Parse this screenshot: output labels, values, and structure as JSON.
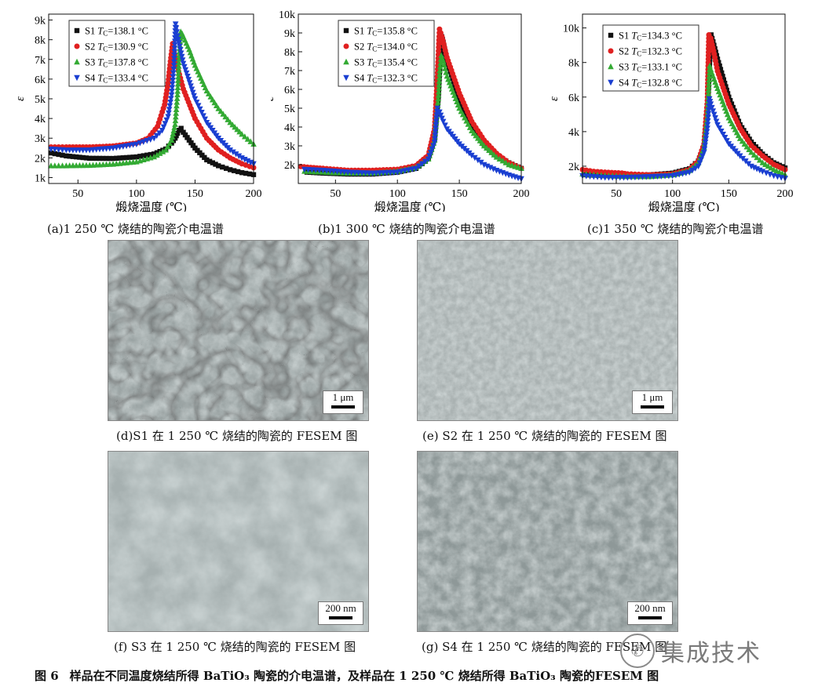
{
  "panels": [
    {
      "caption": "(a)1 250 ℃ 烧结的陶瓷介电温谱",
      "xlabel": "煅烧温度 (℃)",
      "ylabel": "ε",
      "legend": [
        {
          "name": "S1",
          "tc": "138.1 °C"
        },
        {
          "name": "S2",
          "tc": "130.9 °C"
        },
        {
          "name": "S3",
          "tc": "137.8 °C"
        },
        {
          "name": "S4",
          "tc": "133.4 °C"
        }
      ]
    },
    {
      "caption": "(b)1 300 ℃ 烧结的陶瓷介电温谱",
      "xlabel": "煅烧温度 (℃)",
      "ylabel": "ε",
      "legend": [
        {
          "name": "S1",
          "tc": "135.8 °C"
        },
        {
          "name": "S2",
          "tc": "134.0 °C"
        },
        {
          "name": "S3",
          "tc": "135.4 °C"
        },
        {
          "name": "S4",
          "tc": "132.3 °C"
        }
      ]
    },
    {
      "caption": "(c)1 350 ℃ 烧结的陶瓷介电温谱",
      "xlabel": "煅烧温度 (℃)",
      "ylabel": "ε",
      "legend": [
        {
          "name": "S1",
          "tc": "134.3 °C"
        },
        {
          "name": "S2",
          "tc": "132.3 °C"
        },
        {
          "name": "S3",
          "tc": "133.1 °C"
        },
        {
          "name": "S4",
          "tc": "132.8 °C"
        }
      ]
    }
  ],
  "chart_data": [
    {
      "type": "scatter",
      "xlabel": "煅烧温度 (℃)",
      "ylabel": "ε",
      "xlim": [
        25,
        200
      ],
      "ylim": [
        700,
        9300
      ],
      "xticks": [
        50,
        100,
        150,
        200
      ],
      "yticks": [
        1000,
        2000,
        3000,
        4000,
        5000,
        6000,
        7000,
        8000,
        9000
      ],
      "yticklabels": [
        "1k",
        "2k",
        "3k",
        "4k",
        "5k",
        "6k",
        "7k",
        "8k",
        "9k"
      ],
      "legend_position": "top-left",
      "series": [
        {
          "name": "S1",
          "color": "#111111",
          "marker": "square",
          "x": [
            27,
            40,
            60,
            80,
            100,
            115,
            125,
            130,
            133,
            135,
            136.5,
            138.1,
            140,
            150,
            160,
            170,
            180,
            190,
            200
          ],
          "y": [
            2250,
            2100,
            1980,
            1970,
            2050,
            2200,
            2450,
            2750,
            3000,
            3250,
            3400,
            3500,
            3300,
            2500,
            1900,
            1600,
            1400,
            1250,
            1150
          ]
        },
        {
          "name": "S2",
          "color": "#e02020",
          "marker": "circle",
          "x": [
            27,
            40,
            60,
            80,
            100,
            110,
            118,
            124,
            127,
            129,
            130.9,
            132,
            135,
            140,
            150,
            160,
            170,
            180,
            190,
            200
          ],
          "y": [
            2550,
            2550,
            2550,
            2600,
            2750,
            3000,
            3600,
            4700,
            5800,
            6900,
            7800,
            7400,
            6600,
            5500,
            4000,
            3000,
            2400,
            2000,
            1700,
            1500
          ]
        },
        {
          "name": "S3",
          "color": "#33aa33",
          "marker": "triangle-up",
          "x": [
            27,
            40,
            60,
            80,
            100,
            115,
            125,
            130,
            133,
            135,
            136.5,
            137.8,
            139,
            145,
            150,
            160,
            170,
            180,
            190,
            200
          ],
          "y": [
            1600,
            1600,
            1620,
            1680,
            1800,
            2050,
            2400,
            2900,
            3700,
            5200,
            7200,
            8400,
            8300,
            7500,
            6700,
            5400,
            4500,
            3800,
            3200,
            2700
          ]
        },
        {
          "name": "S4",
          "color": "#1a3fd1",
          "marker": "triangle-down",
          "x": [
            27,
            40,
            60,
            80,
            100,
            115,
            122,
            127,
            130,
            132,
            133.4,
            135,
            140,
            150,
            160,
            170,
            180,
            190,
            200
          ],
          "y": [
            2450,
            2400,
            2400,
            2500,
            2700,
            3000,
            3400,
            4100,
            5200,
            6700,
            8800,
            8200,
            6800,
            5000,
            3800,
            3000,
            2400,
            2000,
            1700
          ]
        }
      ]
    },
    {
      "type": "scatter",
      "xlabel": "煅烧温度 (℃)",
      "ylabel": "ε",
      "xlim": [
        20,
        200
      ],
      "ylim": [
        1000,
        10000
      ],
      "xticks": [
        50,
        100,
        150,
        200
      ],
      "yticks": [
        2000,
        3000,
        4000,
        5000,
        6000,
        7000,
        8000,
        9000,
        10000
      ],
      "yticklabels": [
        "2k",
        "3k",
        "4k",
        "5k",
        "6k",
        "7k",
        "8k",
        "9k",
        "10k"
      ],
      "legend_position": "top-left",
      "series": [
        {
          "name": "S1",
          "color": "#111111",
          "marker": "square",
          "x": [
            27,
            40,
            60,
            80,
            100,
            115,
            125,
            130,
            133,
            134.5,
            135.8,
            137,
            140,
            150,
            160,
            170,
            180,
            190,
            200
          ],
          "y": [
            1600,
            1550,
            1500,
            1500,
            1600,
            1800,
            2300,
            3300,
            5500,
            7500,
            8800,
            8500,
            7500,
            5500,
            4000,
            3100,
            2500,
            2100,
            1800
          ]
        },
        {
          "name": "S2",
          "color": "#e02020",
          "marker": "circle",
          "x": [
            22,
            30,
            40,
            60,
            80,
            100,
            115,
            125,
            130,
            132,
            134.0,
            136,
            140,
            150,
            160,
            170,
            180,
            190,
            200
          ],
          "y": [
            1900,
            1850,
            1800,
            1700,
            1700,
            1750,
            1950,
            2500,
            3900,
            6300,
            9200,
            8800,
            7700,
            5800,
            4300,
            3300,
            2600,
            2100,
            1800
          ]
        },
        {
          "name": "S3",
          "color": "#33aa33",
          "marker": "triangle-up",
          "x": [
            25,
            40,
            60,
            80,
            100,
            115,
            125,
            130,
            133,
            134.2,
            135.4,
            137,
            140,
            150,
            160,
            170,
            180,
            190,
            200
          ],
          "y": [
            1650,
            1600,
            1550,
            1550,
            1650,
            1850,
            2300,
            3300,
            5500,
            7000,
            7800,
            7500,
            6700,
            5000,
            3800,
            3000,
            2400,
            2000,
            1800
          ]
        },
        {
          "name": "S4",
          "color": "#1a3fd1",
          "marker": "triangle-down",
          "x": [
            25,
            40,
            60,
            80,
            100,
            115,
            125,
            130,
            131.3,
            132.3,
            134,
            137,
            140,
            150,
            160,
            170,
            180,
            190,
            200
          ],
          "y": [
            1750,
            1700,
            1600,
            1550,
            1600,
            1800,
            2300,
            3200,
            4300,
            5000,
            4800,
            4300,
            3900,
            3100,
            2500,
            2000,
            1700,
            1450,
            1250
          ]
        }
      ]
    },
    {
      "type": "scatter",
      "xlabel": "煅烧温度 (℃)",
      "ylabel": "ε",
      "xlim": [
        20,
        200
      ],
      "ylim": [
        1000,
        10800
      ],
      "xticks": [
        50,
        100,
        150,
        200
      ],
      "yticks": [
        2000,
        4000,
        6000,
        8000,
        10000
      ],
      "yticklabels": [
        "2k",
        "4k",
        "6k",
        "8k",
        "10k"
      ],
      "legend_position": "top-left",
      "series": [
        {
          "name": "S1",
          "color": "#111111",
          "marker": "square",
          "x": [
            22,
            40,
            60,
            80,
            100,
            115,
            123,
            128,
            131,
            133,
            134.3,
            136,
            140,
            150,
            160,
            170,
            180,
            190,
            200
          ],
          "y": [
            1500,
            1450,
            1450,
            1500,
            1600,
            1850,
            2300,
            3200,
            5000,
            8000,
            9600,
            9200,
            8200,
            6000,
            4400,
            3400,
            2700,
            2200,
            1900
          ]
        },
        {
          "name": "S2",
          "color": "#e02020",
          "marker": "circle",
          "x": [
            20,
            30,
            40,
            55,
            60,
            80,
            100,
            115,
            123,
            128,
            131,
            132.3,
            134,
            137,
            140,
            150,
            160,
            170,
            180,
            190,
            200
          ],
          "y": [
            1800,
            1700,
            1650,
            1600,
            1550,
            1500,
            1550,
            1800,
            2300,
            3300,
            5800,
            9600,
            9400,
            8500,
            7500,
            5600,
            4200,
            3200,
            2600,
            2100,
            1800
          ]
        },
        {
          "name": "S3",
          "color": "#33aa33",
          "marker": "triangle-up",
          "x": [
            20,
            40,
            60,
            80,
            100,
            115,
            123,
            128,
            131,
            133.1,
            135,
            140,
            150,
            160,
            170,
            180,
            190,
            200
          ],
          "y": [
            1550,
            1450,
            1400,
            1400,
            1500,
            1750,
            2200,
            3100,
            5000,
            7800,
            7400,
            6500,
            4800,
            3600,
            2800,
            2200,
            1800,
            1500
          ]
        },
        {
          "name": "S4",
          "color": "#1a3fd1",
          "marker": "triangle-down",
          "x": [
            20,
            40,
            60,
            80,
            100,
            115,
            123,
            128,
            131,
            132.8,
            134,
            137,
            140,
            150,
            160,
            170,
            180,
            190,
            200
          ],
          "y": [
            1450,
            1350,
            1350,
            1400,
            1450,
            1650,
            2000,
            2800,
            4200,
            5900,
            5600,
            5000,
            4400,
            3300,
            2600,
            2000,
            1700,
            1450,
            1300
          ]
        }
      ]
    }
  ],
  "micrographs": [
    {
      "caption": "(d)S1 在 1 250 ℃ 烧结的陶瓷的 FESEM 图",
      "scale": "1 μm"
    },
    {
      "caption": "(e) S2 在 1 250 ℃ 烧结的陶瓷的 FESEM 图",
      "scale": "1 μm"
    },
    {
      "caption": "(f) S3 在 1 250 ℃ 烧结的陶瓷的 FESEM 图",
      "scale": "200 nm"
    },
    {
      "caption": "(g) S4 在 1 250 ℃ 烧结的陶瓷的 FESEM 图",
      "scale": "200 nm"
    }
  ],
  "figure_caption": {
    "label": "图 6",
    "text": "样品在不同温度烧结所得 BaTiO₃ 陶瓷的介电温谱，及样品在 1 250 ℃ 烧结所得 BaTiO₃ 陶瓷的FESEM 图"
  },
  "watermark": {
    "text": "集成技术",
    "icon": "wechat-icon"
  }
}
